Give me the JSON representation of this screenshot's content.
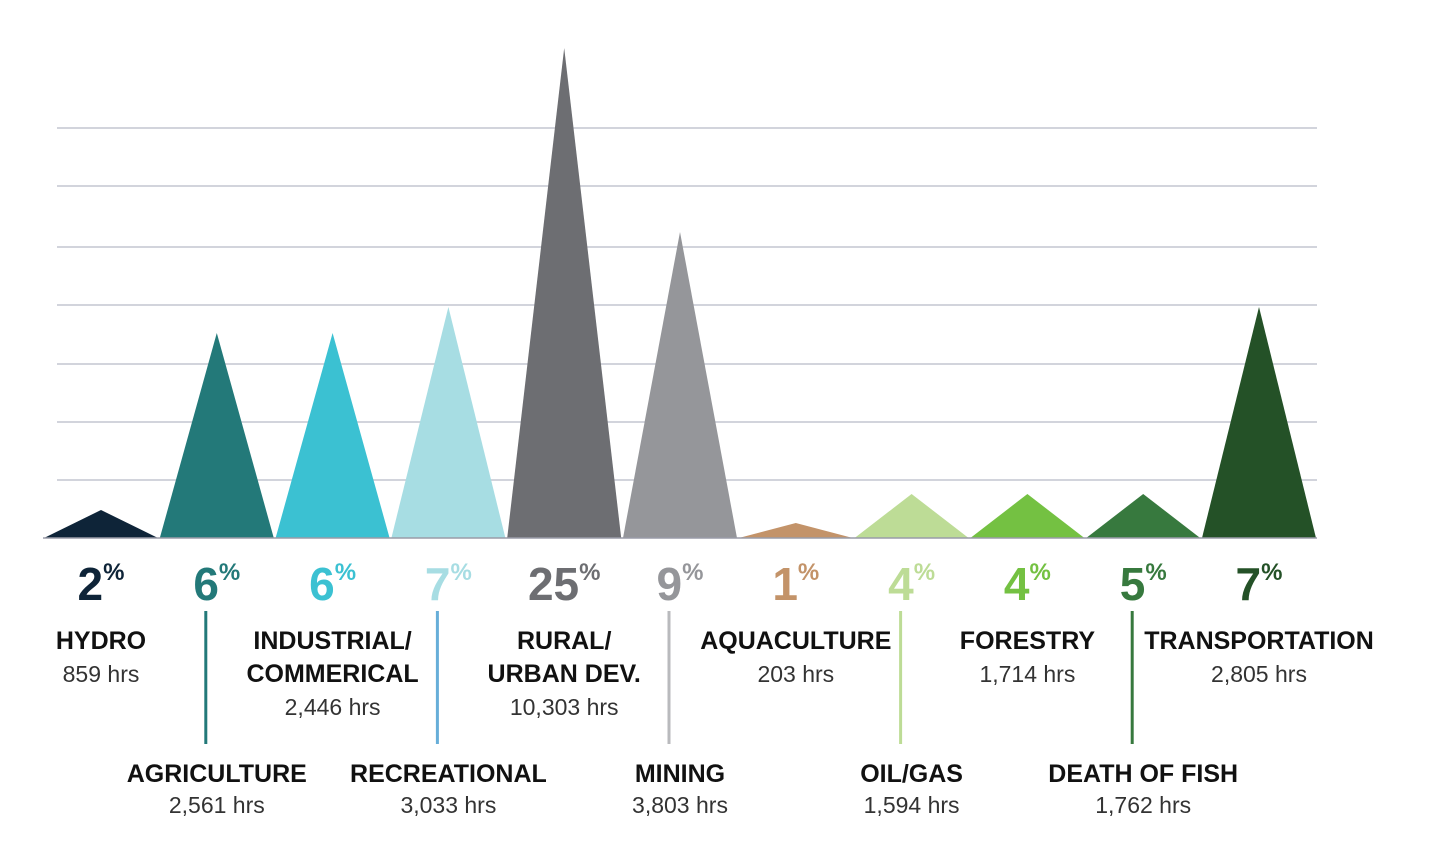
{
  "chart_data": {
    "type": "bar",
    "mark_shape": "triangle",
    "grid": true,
    "percent_suffix": "%",
    "hours_suffix": " hrs",
    "categories": [
      {
        "label": [
          "HYDRO"
        ],
        "percent": 2,
        "hours": "859",
        "color": "#0e2438",
        "label_row": "top"
      },
      {
        "label": [
          "AGRICULTURE"
        ],
        "percent": 6,
        "hours": "2,561",
        "color": "#237979",
        "label_row": "bottom"
      },
      {
        "label": [
          "INDUSTRIAL/",
          "COMMERICAL"
        ],
        "percent": 6,
        "hours": "2,446",
        "color": "#3bc1d2",
        "label_row": "top"
      },
      {
        "label": [
          "RECREATIONAL"
        ],
        "percent": 7,
        "hours": "3,033",
        "color": "#a7dde3",
        "label_row": "bottom"
      },
      {
        "label": [
          "RURAL/",
          "URBAN DEV."
        ],
        "percent": 25,
        "hours": "10,303",
        "color": "#6d6e72",
        "label_row": "top"
      },
      {
        "label": [
          "MINING"
        ],
        "percent": 9,
        "hours": "3,803",
        "color": "#95969a",
        "label_row": "bottom"
      },
      {
        "label": [
          "AQUACULTURE"
        ],
        "percent": 1,
        "hours": "203",
        "color": "#c39369",
        "label_row": "top"
      },
      {
        "label": [
          "OIL/GAS"
        ],
        "percent": 4,
        "hours": "1,594",
        "color": "#bddc96",
        "label_row": "bottom"
      },
      {
        "label": [
          "FORESTRY"
        ],
        "percent": 4,
        "hours": "1,714",
        "color": "#74c142",
        "label_row": "top"
      },
      {
        "label": [
          "DEATH OF FISH"
        ],
        "percent": 5,
        "hours": "1,762",
        "color": "#37793e",
        "label_row": "bottom"
      },
      {
        "label": [
          "TRANSPORTATION"
        ],
        "percent": 7,
        "hours": "2,805",
        "color": "#245127",
        "label_row": "top"
      }
    ],
    "colors": {
      "gridline": "#c4c6d0",
      "baseline": "#9a9ca8",
      "connector_agriculture": "#237979",
      "connector_recreational": "#67aed9",
      "connector_mining": "#b9babd",
      "connector_oilgas": "#bddc96",
      "connector_deathoffish": "#37793e",
      "label_text": "#111111",
      "hours_text": "#333333"
    }
  }
}
